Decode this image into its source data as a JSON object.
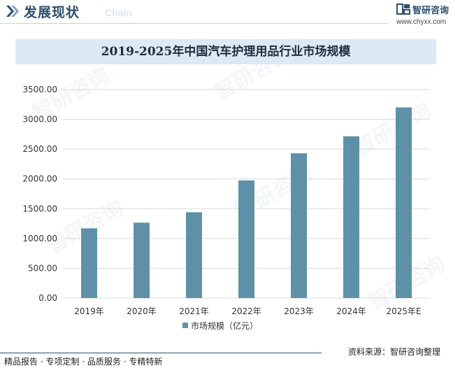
{
  "header": {
    "title": "发展现状",
    "subtitle": "Chain"
  },
  "brand": {
    "name": "智研咨询",
    "url": "www.chyxx.com"
  },
  "watermark": "智研咨询",
  "chart_data": {
    "type": "bar",
    "title": "2019-2025年中国汽车护理用品行业市场规模",
    "categories": [
      "2019年",
      "2020年",
      "2021年",
      "2022年",
      "2023年",
      "2024年",
      "2025年E"
    ],
    "series": [
      {
        "name": "市场规模（亿元）",
        "values": [
          1170,
          1265,
          1440,
          1975,
          2430,
          2715,
          3200
        ]
      }
    ],
    "y_ticks": [
      "0.00",
      "500.00",
      "1000.00",
      "1500.00",
      "2000.00",
      "2500.00",
      "3000.00",
      "3500.00"
    ],
    "ylim": [
      0,
      3500
    ],
    "grid": true,
    "legend_position": "bottom",
    "bar_color": "#5e91a8",
    "grid_color": "#d9d9d9"
  },
  "footer": {
    "left": "精品报告 · 专项定制 · 品质服务 · 专精特新",
    "source": "资料来源：智研咨询整理"
  }
}
